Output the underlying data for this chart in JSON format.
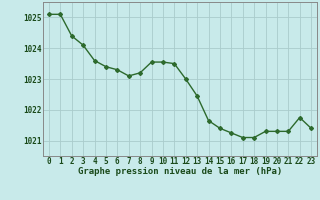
{
  "x": [
    0,
    1,
    2,
    3,
    4,
    5,
    6,
    7,
    8,
    9,
    10,
    11,
    12,
    13,
    14,
    15,
    16,
    17,
    18,
    19,
    20,
    21,
    22,
    23
  ],
  "y": [
    1025.1,
    1025.1,
    1024.4,
    1024.1,
    1023.6,
    1023.4,
    1023.3,
    1023.1,
    1023.2,
    1023.55,
    1023.55,
    1023.5,
    1023.0,
    1022.45,
    1021.65,
    1021.4,
    1021.25,
    1021.1,
    1021.1,
    1021.3,
    1021.3,
    1021.3,
    1021.75,
    1021.4
  ],
  "ylim": [
    1020.5,
    1025.5
  ],
  "yticks": [
    1021,
    1022,
    1023,
    1024,
    1025
  ],
  "xticks": [
    0,
    1,
    2,
    3,
    4,
    5,
    6,
    7,
    8,
    9,
    10,
    11,
    12,
    13,
    14,
    15,
    16,
    17,
    18,
    19,
    20,
    21,
    22,
    23
  ],
  "xlabel": "Graphe pression niveau de la mer (hPa)",
  "line_color": "#2d6a2d",
  "bg_color": "#c8eaea",
  "grid_color": "#aacccc",
  "tick_label_color": "#1a4a1a",
  "xlabel_color": "#1a4a1a",
  "marker": "D",
  "marker_size": 2.0,
  "line_width": 1.0,
  "xlabel_fontsize": 6.5,
  "tick_fontsize": 5.5
}
